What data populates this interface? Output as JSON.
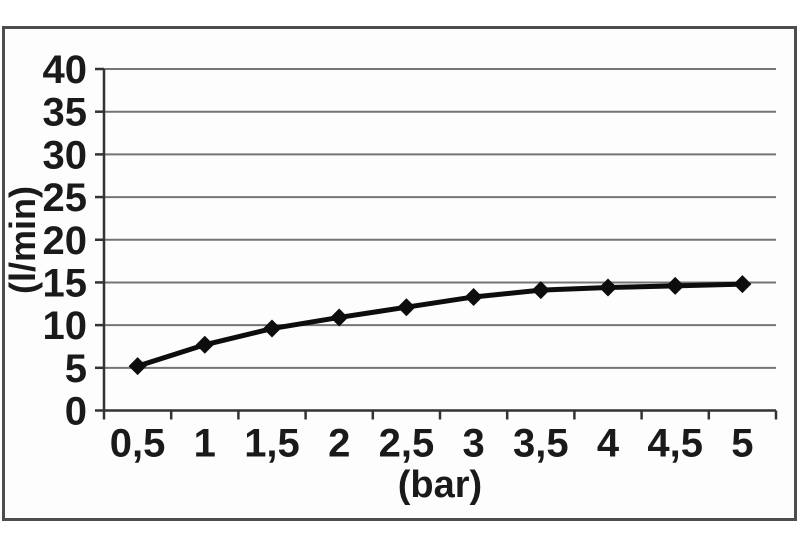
{
  "chart_data": {
    "type": "line",
    "categories": [
      "0,5",
      "1",
      "1,5",
      "2",
      "2,5",
      "3",
      "3,5",
      "4",
      "4,5",
      "5"
    ],
    "x": [
      0.5,
      1,
      1.5,
      2,
      2.5,
      3,
      3.5,
      4,
      4.5,
      5
    ],
    "values": [
      5.2,
      7.7,
      9.6,
      10.9,
      12.1,
      13.3,
      14.1,
      14.4,
      14.6,
      14.8
    ],
    "xlabel": "(bar)",
    "ylabel": "(l/min)",
    "ylim": [
      0,
      40
    ],
    "ytick_step": 5,
    "yticks": [
      "0",
      "5",
      "10",
      "15",
      "20",
      "25",
      "30",
      "35",
      "40"
    ],
    "grid": "horizontal",
    "legend": "none",
    "marker": "diamond",
    "series_color": "#0d0d0d"
  },
  "colors": {
    "gridline": "#757575",
    "axis": "#333333",
    "text": "#1a1a1a",
    "frame_border": "#4d4d4d",
    "background": "#fdfdfd"
  }
}
